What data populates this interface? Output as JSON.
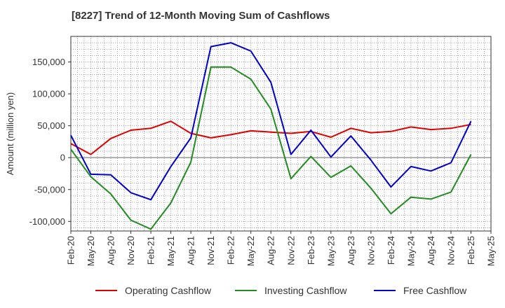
{
  "chart_data": {
    "type": "line",
    "title": "[8227]  Trend of 12-Month Moving Sum of Cashflows",
    "xlabel": "",
    "ylabel": "Amount (million yen)",
    "categories": [
      "Feb-20",
      "May-20",
      "Aug-20",
      "Nov-20",
      "Feb-21",
      "May-21",
      "Aug-21",
      "Nov-21",
      "Feb-22",
      "May-22",
      "Aug-22",
      "Nov-22",
      "Feb-23",
      "May-23",
      "Aug-23",
      "Nov-23",
      "Feb-24",
      "May-24",
      "Aug-24",
      "Nov-24",
      "Feb-25",
      "May-25"
    ],
    "series": [
      {
        "name": "Operating Cashflow",
        "color": "#e00000",
        "values": [
          22000,
          5000,
          30000,
          43000,
          46000,
          57000,
          38000,
          31000,
          36000,
          42000,
          40000,
          38000,
          41000,
          32000,
          46000,
          39000,
          41000,
          48000,
          44000,
          46000,
          52000,
          null
        ]
      },
      {
        "name": "Investing Cashflow",
        "color": "#228b22",
        "values": [
          13000,
          -30000,
          -57000,
          -98000,
          -112000,
          -71000,
          -7000,
          142000,
          142000,
          123000,
          76000,
          -33000,
          2000,
          -31000,
          -13000,
          -48000,
          -88000,
          -62000,
          -65000,
          -54000,
          5000,
          null
        ]
      },
      {
        "name": "Free Cashflow",
        "color": "#0000cc",
        "values": [
          35000,
          -26000,
          -27000,
          -55000,
          -66000,
          -14000,
          31000,
          174000,
          180000,
          167000,
          118000,
          5000,
          43000,
          1000,
          34000,
          -4000,
          -46000,
          -14000,
          -21000,
          -8000,
          57000,
          null
        ]
      }
    ],
    "yticks": [
      -100000,
      -50000,
      0,
      50000,
      100000,
      150000
    ],
    "ytick_labels": [
      "-100,000",
      "-50,000",
      "0",
      "50,000",
      "100,000",
      "150,000"
    ],
    "ylim": [
      -115000,
      190000
    ],
    "grid": true,
    "legend_position": "bottom"
  }
}
